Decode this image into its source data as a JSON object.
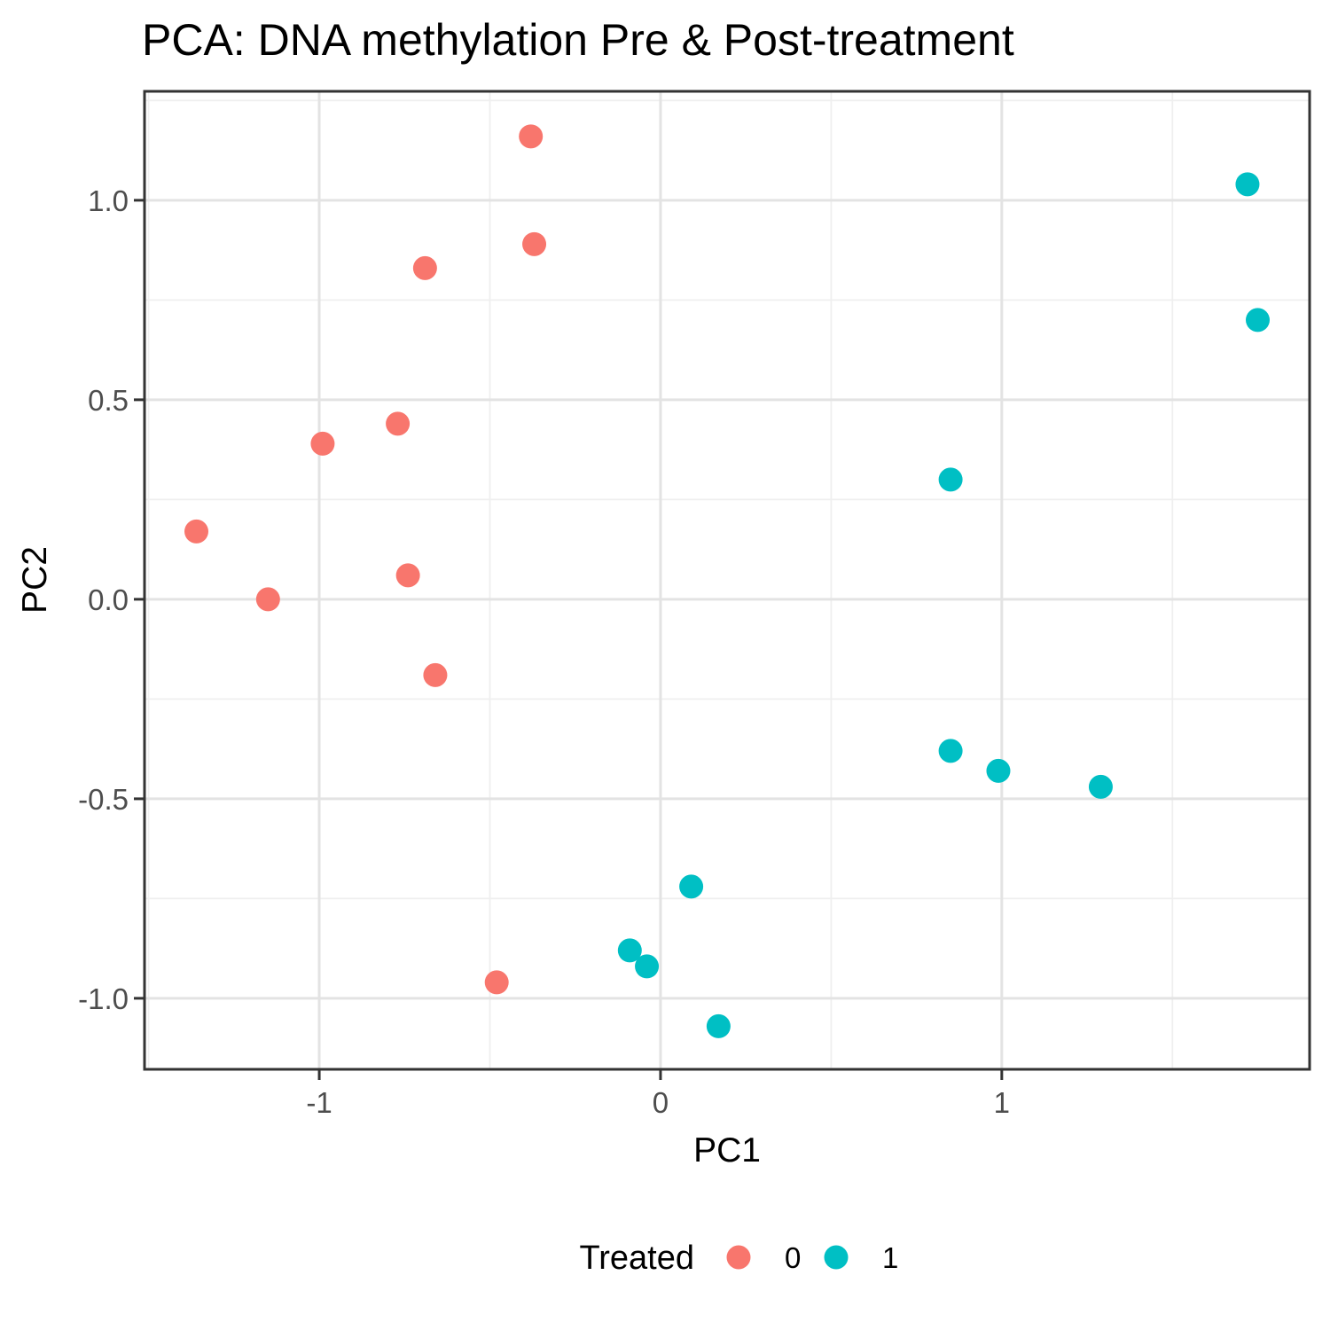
{
  "chart_data": {
    "type": "scatter",
    "title": "PCA: DNA methylation Pre & Post-treatment",
    "xlabel": "PC1",
    "ylabel": "PC2",
    "xlim": [
      -1.512,
      1.902
    ],
    "ylim": [
      -1.178,
      1.273
    ],
    "grid": true,
    "x_major_ticks": [
      -1,
      0,
      1
    ],
    "x_tick_labels": [
      "-1",
      "0",
      "1"
    ],
    "x_minor_gridlines": [
      -1.5,
      -0.5,
      0.5,
      1.5
    ],
    "y_major_ticks": [
      -1.0,
      -0.5,
      0.0,
      0.5,
      1.0
    ],
    "y_tick_labels": [
      "-1.0",
      "-0.5",
      "0.0",
      "0.5",
      "1.0"
    ],
    "y_minor_gridlines": [
      -0.75,
      -0.25,
      0.25,
      0.75,
      1.25
    ],
    "marker_radius": 13.5,
    "legend": {
      "title": "Treated",
      "position": "bottom",
      "entries": [
        {
          "label": "0",
          "color": "#F8766D"
        },
        {
          "label": "1",
          "color": "#00BFC4"
        }
      ]
    },
    "series": [
      {
        "name": "0",
        "color": "#F8766D",
        "points": [
          [
            -0.38,
            1.16
          ],
          [
            -0.37,
            0.89
          ],
          [
            -0.69,
            0.83
          ],
          [
            -0.77,
            0.44
          ],
          [
            -0.99,
            0.39
          ],
          [
            -1.36,
            0.17
          ],
          [
            -0.74,
            0.06
          ],
          [
            -1.15,
            0.0
          ],
          [
            -0.66,
            -0.19
          ],
          [
            -0.48,
            -0.96
          ]
        ]
      },
      {
        "name": "1",
        "color": "#00BFC4",
        "points": [
          [
            1.72,
            1.04
          ],
          [
            1.75,
            0.7
          ],
          [
            0.85,
            0.3
          ],
          [
            0.85,
            -0.38
          ],
          [
            0.99,
            -0.43
          ],
          [
            1.29,
            -0.47
          ],
          [
            0.09,
            -0.72
          ],
          [
            -0.09,
            -0.88
          ],
          [
            -0.04,
            -0.92
          ],
          [
            0.17,
            -1.07
          ]
        ]
      }
    ],
    "style": {
      "grid_major_color": "#e3e3e3",
      "grid_minor_color": "#efefef",
      "panel_border_color": "#333333",
      "tick_color": "#333333",
      "tick_label_color": "#4d4d4d"
    }
  }
}
